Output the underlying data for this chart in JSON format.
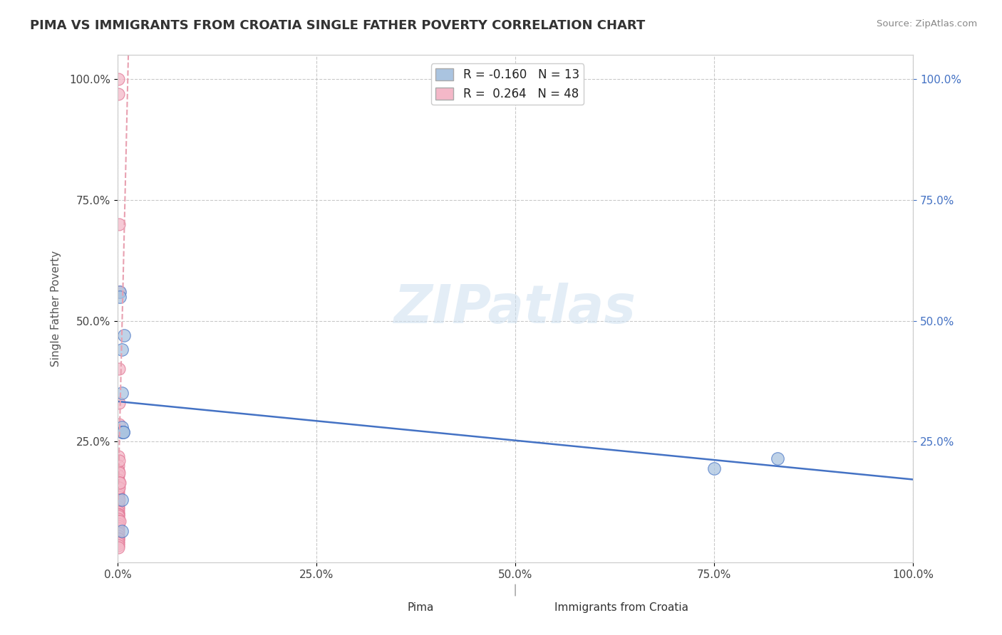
{
  "title": "PIMA VS IMMIGRANTS FROM CROATIA SINGLE FATHER POVERTY CORRELATION CHART",
  "source": "Source: ZipAtlas.com",
  "ylabel": "Single Father Poverty",
  "xlim": [
    0.0,
    1.0
  ],
  "ylim": [
    0.0,
    1.05
  ],
  "xtick_labels": [
    "0.0%",
    "25.0%",
    "50.0%",
    "75.0%",
    "100.0%"
  ],
  "xtick_positions": [
    0.0,
    0.25,
    0.5,
    0.75,
    1.0
  ],
  "ytick_labels": [
    "100.0%",
    "75.0%",
    "50.0%",
    "25.0%"
  ],
  "ytick_positions": [
    1.0,
    0.75,
    0.5,
    0.25
  ],
  "right_ytick_labels": [
    "100.0%",
    "75.0%",
    "50.0%",
    "25.0%"
  ],
  "right_ytick_positions": [
    1.0,
    0.75,
    0.5,
    0.25
  ],
  "legend_label1": "R = -0.160   N = 13",
  "legend_label2": "R =  0.264   N = 48",
  "series1_color": "#aac4e0",
  "series2_color": "#f4b8c8",
  "series1_edge_color": "#4472c4",
  "series2_edge_color": "#e07090",
  "series1_line_color": "#4472c4",
  "series2_line_color": "#e8a0b0",
  "watermark": "ZIPatlas",
  "pima_x": [
    0.003,
    0.003,
    0.005,
    0.005,
    0.005,
    0.005,
    0.007,
    0.007,
    0.008,
    0.75,
    0.83,
    0.005,
    0.005
  ],
  "pima_y": [
    0.56,
    0.55,
    0.44,
    0.35,
    0.28,
    0.27,
    0.27,
    0.27,
    0.47,
    0.195,
    0.215,
    0.13,
    0.065
  ],
  "croatia_x": [
    0.001,
    0.001,
    0.001,
    0.001,
    0.001,
    0.001,
    0.001,
    0.001,
    0.001,
    0.001,
    0.001,
    0.001,
    0.001,
    0.001,
    0.001,
    0.001,
    0.001,
    0.001,
    0.001,
    0.001,
    0.001,
    0.001,
    0.001,
    0.001,
    0.001,
    0.001,
    0.001,
    0.001,
    0.001,
    0.001,
    0.001,
    0.001,
    0.001,
    0.001,
    0.001,
    0.001,
    0.002,
    0.002,
    0.002,
    0.002,
    0.002,
    0.002,
    0.002,
    0.002,
    0.002,
    0.002,
    0.003,
    0.003
  ],
  "croatia_y": [
    1.0,
    0.97,
    0.22,
    0.2,
    0.19,
    0.18,
    0.17,
    0.165,
    0.155,
    0.155,
    0.145,
    0.14,
    0.135,
    0.13,
    0.125,
    0.12,
    0.115,
    0.11,
    0.105,
    0.1,
    0.098,
    0.095,
    0.09,
    0.085,
    0.08,
    0.075,
    0.07,
    0.065,
    0.06,
    0.055,
    0.05,
    0.048,
    0.044,
    0.04,
    0.035,
    0.03,
    0.7,
    0.56,
    0.4,
    0.33,
    0.285,
    0.21,
    0.185,
    0.165,
    0.155,
    0.13,
    0.165,
    0.085
  ],
  "background_color": "#ffffff",
  "grid_color": "#cccccc",
  "grid_style": "--"
}
